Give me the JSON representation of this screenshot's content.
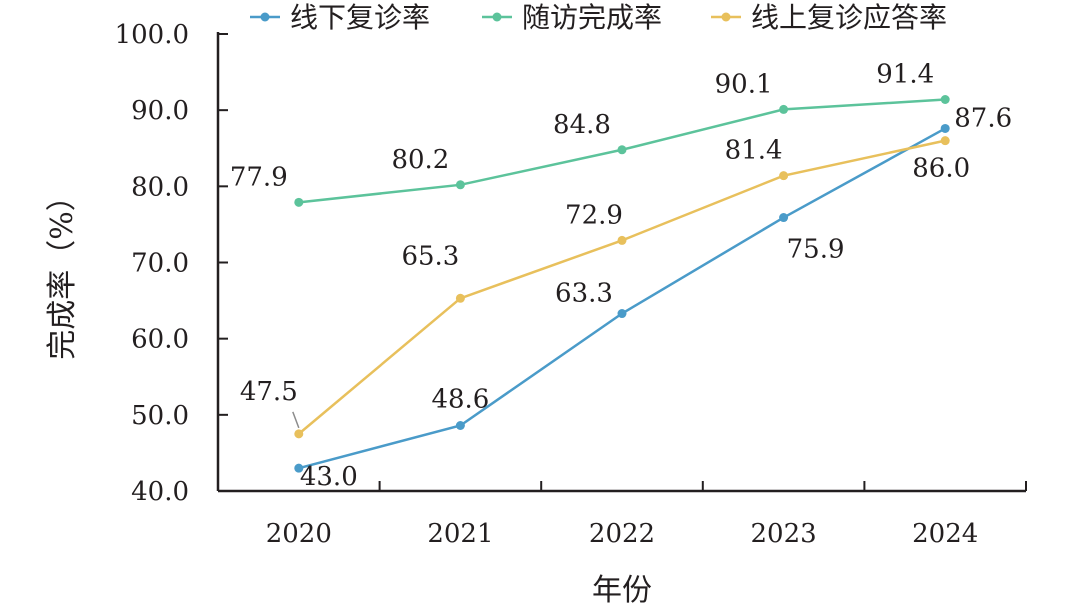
{
  "chart_data": {
    "type": "line",
    "xlabel": "年份",
    "ylabel": "完成率（%）",
    "categories": [
      "2020",
      "2021",
      "2022",
      "2023",
      "2024"
    ],
    "ylim": [
      40.0,
      100.0
    ],
    "yticks": [
      "40.0",
      "50.0",
      "60.0",
      "70.0",
      "80.0",
      "90.0",
      "100.0"
    ],
    "grid": false,
    "legend_position": "top",
    "series": [
      {
        "name": "线下复诊率",
        "color": "#4a9bc9",
        "values": [
          43.0,
          48.6,
          63.3,
          75.9,
          87.6
        ]
      },
      {
        "name": "随访完成率",
        "color": "#5cc39b",
        "values": [
          77.9,
          80.2,
          84.8,
          90.1,
          91.4
        ]
      },
      {
        "name": "线上复诊应答率",
        "color": "#e8c05c",
        "values": [
          47.5,
          65.3,
          72.9,
          81.4,
          86.0
        ]
      }
    ]
  }
}
